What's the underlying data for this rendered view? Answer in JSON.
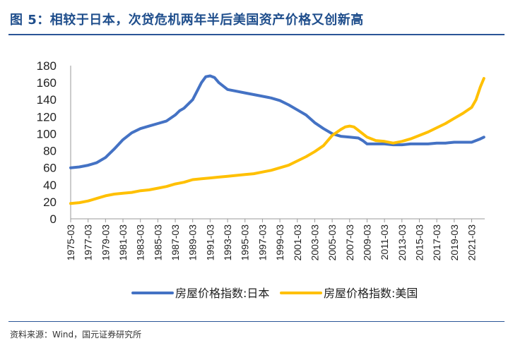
{
  "figure": {
    "title": "图 5：相较于日本，次贷危机两年半后美国资产价格又创新高",
    "source": "资料来源：Wind，国元证券研究所"
  },
  "colors": {
    "japan": "#4472c4",
    "us": "#ffc000",
    "title": "#1f4e8c",
    "rule": "#2b5597"
  },
  "chart_data": {
    "type": "line",
    "title": "图 5：相较于日本，次贷危机两年半后美国资产价格又创新高",
    "xlabel": "",
    "ylabel": "",
    "ylim": [
      0,
      180
    ],
    "yticks": [
      0,
      20,
      40,
      60,
      80,
      100,
      120,
      140,
      160,
      180
    ],
    "xlim": [
      1975.0,
      2022.5
    ],
    "xtick_labels": [
      "1975-03",
      "1977-03",
      "1979-03",
      "1981-03",
      "1983-03",
      "1985-03",
      "1987-03",
      "1989-03",
      "1991-03",
      "1993-03",
      "1995-03",
      "1997-03",
      "1999-03",
      "2001-03",
      "2003-03",
      "2005-03",
      "2007-03",
      "2009-03",
      "2011-03",
      "2013-03",
      "2015-03",
      "2017-03",
      "2019-03",
      "2021-03"
    ],
    "grid": false,
    "legend_position": "bottom",
    "series": [
      {
        "name": "房屋价格指数:日本",
        "x": [
          1975.0,
          1976,
          1977,
          1978,
          1979,
          1980,
          1981,
          1982,
          1983,
          1984,
          1985,
          1986,
          1987,
          1987.5,
          1988,
          1989,
          1990,
          1990.5,
          1991,
          1991.5,
          1992,
          1993,
          1994,
          1995,
          1996,
          1997,
          1998,
          1999,
          2000,
          2001,
          2002,
          2003,
          2004,
          2005,
          2006,
          2007,
          2008,
          2008.5,
          2009,
          2010,
          2011,
          2012,
          2013,
          2014,
          2015,
          2016,
          2017,
          2018,
          2019,
          2020,
          2021,
          2022,
          2022.4
        ],
        "values": [
          60,
          61,
          63,
          66,
          72,
          82,
          93,
          101,
          106,
          109,
          112,
          115,
          122,
          127,
          130,
          140,
          160,
          167,
          168,
          166,
          160,
          152,
          150,
          148,
          146,
          144,
          142,
          139,
          134,
          128,
          122,
          113,
          106,
          100,
          97,
          96,
          95,
          92,
          88,
          88,
          88,
          87,
          87,
          88,
          88,
          88,
          89,
          89,
          90,
          90,
          90,
          94,
          96
        ]
      },
      {
        "name": "房屋价格指数:美国",
        "x": [
          1975.0,
          1976,
          1977,
          1978,
          1979,
          1980,
          1981,
          1982,
          1983,
          1984,
          1985,
          1986,
          1987,
          1988,
          1989,
          1990,
          1991,
          1992,
          1993,
          1994,
          1995,
          1996,
          1997,
          1998,
          1999,
          2000,
          2001,
          2002,
          2003,
          2004,
          2005,
          2006,
          2006.5,
          2007,
          2007.5,
          2008,
          2009,
          2010,
          2011,
          2012,
          2013,
          2014,
          2015,
          2016,
          2017,
          2018,
          2019,
          2020,
          2021,
          2021.5,
          2022,
          2022.4
        ],
        "values": [
          18,
          19,
          21,
          24,
          27,
          29,
          30,
          31,
          33,
          34,
          36,
          38,
          41,
          43,
          46,
          47,
          48,
          49,
          50,
          51,
          52,
          53,
          55,
          57,
          60,
          63,
          68,
          73,
          79,
          86,
          98,
          105,
          108,
          109,
          108,
          104,
          96,
          92,
          91,
          89,
          91,
          94,
          98,
          102,
          107,
          112,
          118,
          124,
          131,
          140,
          155,
          165
        ]
      }
    ]
  }
}
